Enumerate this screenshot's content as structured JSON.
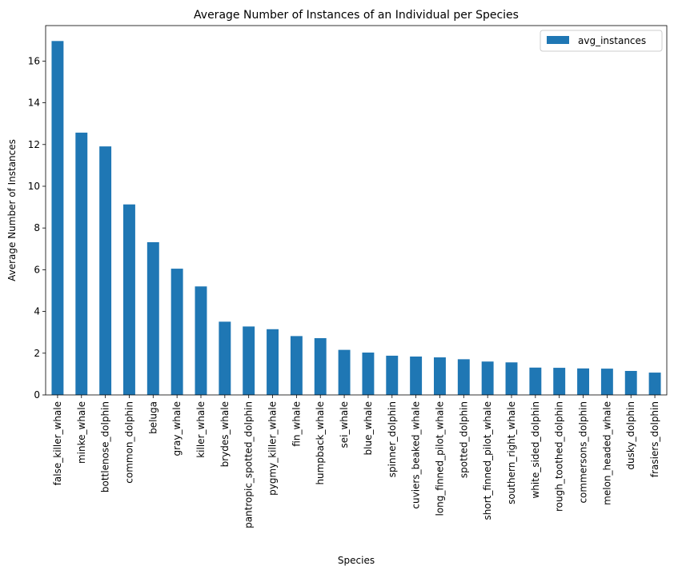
{
  "chart_data": {
    "type": "bar",
    "title": "Average Number of Instances of an Individual per Species",
    "xlabel": "Species",
    "ylabel": "Average Number of Instances",
    "ylim": [
      0,
      17.7
    ],
    "yticks": [
      0,
      2,
      4,
      6,
      8,
      10,
      12,
      14,
      16
    ],
    "grid": false,
    "legend_position": "top-right",
    "bar_color": "#1f77b4",
    "categories": [
      "false_killer_whale",
      "minke_whale",
      "bottlenose_dolphin",
      "common_dolphin",
      "beluga",
      "gray_whale",
      "killer_whale",
      "brydes_whale",
      "pantropic_spotted_dolphin",
      "pygmy_killer_whale",
      "fin_whale",
      "humpback_whale",
      "sei_whale",
      "blue_whale",
      "spinner_dolphin",
      "cuviers_beaked_whale",
      "long_finned_pilot_whale",
      "spotted_dolphin",
      "short_finned_pilot_whale",
      "southern_right_whale",
      "white_sided_dolphin",
      "rough_toothed_dolphin",
      "commersons_dolphin",
      "melon_headed_whale",
      "dusky_dolphin",
      "frasiers_dolphin"
    ],
    "series": [
      {
        "name": "avg_instances",
        "values": [
          16.96,
          12.57,
          11.91,
          9.13,
          7.32,
          6.05,
          5.2,
          3.51,
          3.28,
          3.15,
          2.82,
          2.72,
          2.16,
          2.03,
          1.88,
          1.84,
          1.8,
          1.71,
          1.6,
          1.56,
          1.31,
          1.3,
          1.27,
          1.26,
          1.15,
          1.07
        ]
      }
    ]
  }
}
